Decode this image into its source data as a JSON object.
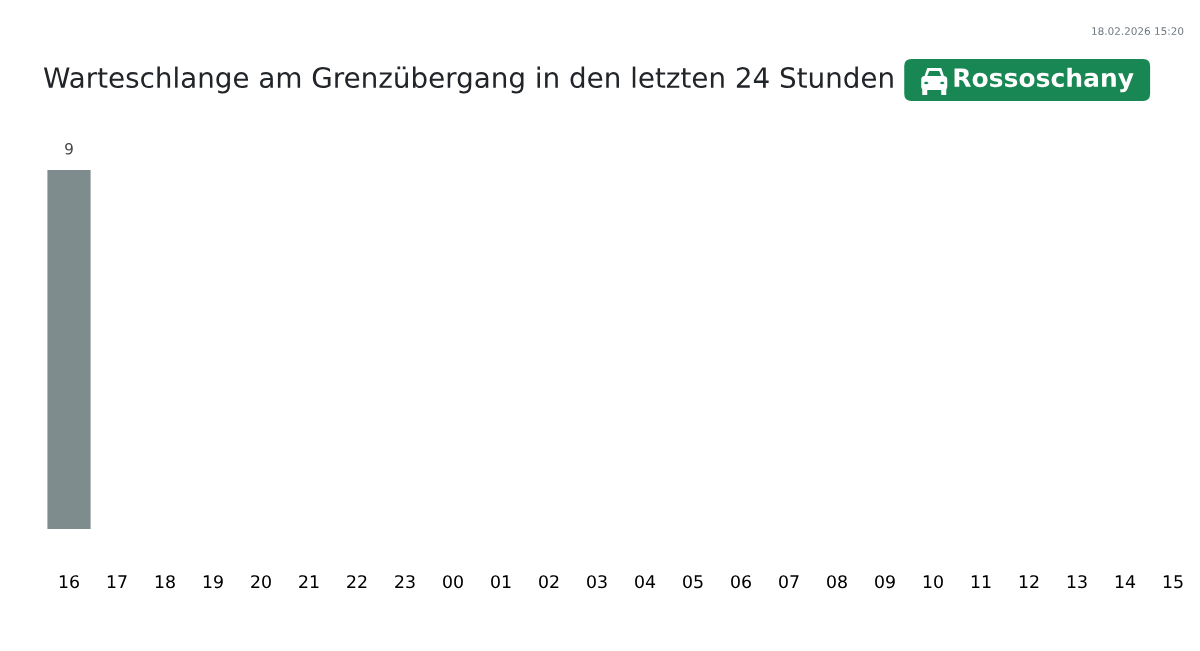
{
  "chart_data": {
    "type": "bar",
    "title": "Warteschlange am Grenzübergang in den letzten 24 Stunden",
    "subtitle": "Rossoschany",
    "categories": [
      "16",
      "17",
      "18",
      "19",
      "20",
      "21",
      "22",
      "23",
      "00",
      "01",
      "02",
      "03",
      "04",
      "05",
      "06",
      "07",
      "08",
      "09",
      "10",
      "11",
      "12",
      "13",
      "14",
      "15"
    ],
    "values": [
      9,
      null,
      null,
      null,
      null,
      null,
      null,
      null,
      null,
      null,
      null,
      null,
      null,
      null,
      null,
      null,
      null,
      null,
      null,
      null,
      null,
      null,
      null,
      null
    ],
    "color": "#7f8c8d",
    "data_labels": true,
    "annotations": [
      "18.02.2026 15:20"
    ]
  }
}
